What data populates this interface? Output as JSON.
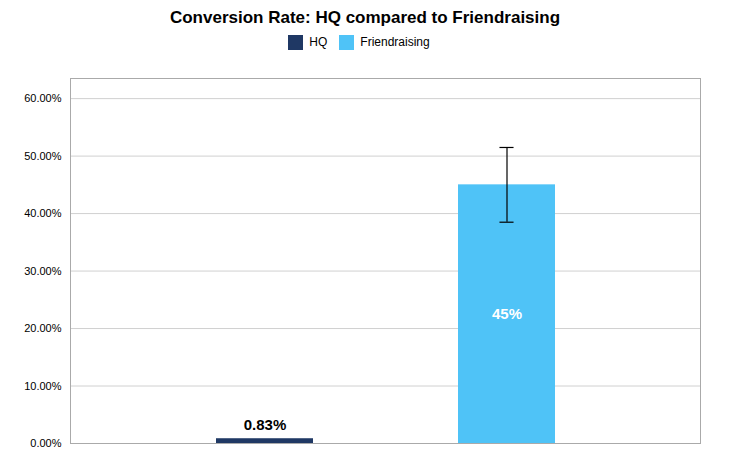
{
  "chart_data": {
    "type": "bar",
    "title": "Conversion Rate: HQ compared to Friendraising",
    "categories": [
      "HQ",
      "Friendraising"
    ],
    "values": [
      0.0083,
      0.45
    ],
    "value_labels": [
      "0.83%",
      "45%"
    ],
    "data_labels": true,
    "colors": [
      "#1F3864",
      "#4FC3F7"
    ],
    "errors": [
      null,
      0.065
    ],
    "ylim": [
      0,
      0.635
    ],
    "yticks": [
      {
        "value": 0.0,
        "label": "0.00%"
      },
      {
        "value": 0.1,
        "label": "10.00%"
      },
      {
        "value": 0.2,
        "label": "20.00%"
      },
      {
        "value": 0.3,
        "label": "30.00%"
      },
      {
        "value": 0.4,
        "label": "40.00%"
      },
      {
        "value": 0.5,
        "label": "50.00%"
      },
      {
        "value": 0.6,
        "label": "60.00%"
      }
    ],
    "grid": true,
    "legend": "upper center",
    "tick_labels": "y"
  }
}
